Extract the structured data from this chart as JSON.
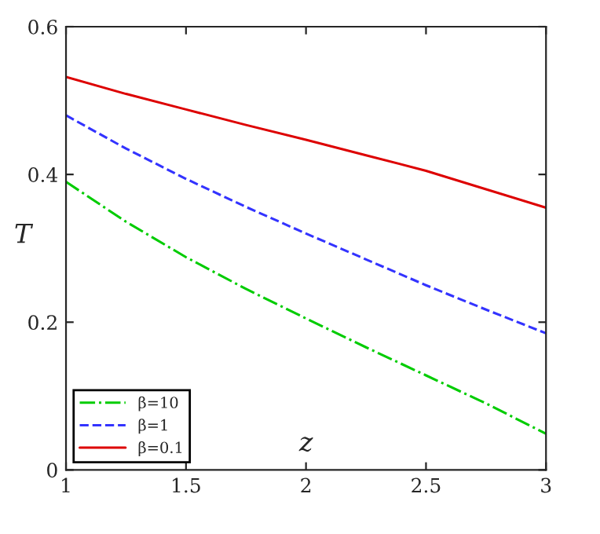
{
  "chart_data": {
    "type": "line",
    "xlabel": "z",
    "ylabel": "T",
    "x": [
      1,
      1.25,
      1.5,
      1.75,
      2,
      2.25,
      2.5,
      2.75,
      3
    ],
    "series": [
      {
        "name": "β=10",
        "color": "#00cc00",
        "line_style": "dashdot",
        "values": [
          0.39,
          0.336,
          0.288,
          0.245,
          0.205,
          0.166,
          0.128,
          0.09,
          0.049
        ]
      },
      {
        "name": "β=1",
        "color": "#3333ff",
        "line_style": "dashed",
        "values": [
          0.48,
          0.435,
          0.394,
          0.356,
          0.32,
          0.285,
          0.25,
          0.217,
          0.185
        ]
      },
      {
        "name": "β=0.1",
        "color": "#dd0000",
        "line_style": "solid",
        "values": [
          0.532,
          0.509,
          0.488,
          0.467,
          0.447,
          0.426,
          0.405,
          0.38,
          0.355
        ]
      }
    ],
    "xlim": [
      1,
      3
    ],
    "ylim": [
      0,
      0.6
    ],
    "xticks": [
      1,
      1.5,
      2,
      2.5,
      3
    ],
    "yticks": [
      0,
      0.2,
      0.4,
      0.6
    ],
    "grid": false,
    "legend": "bottom left",
    "marker": "none"
  }
}
